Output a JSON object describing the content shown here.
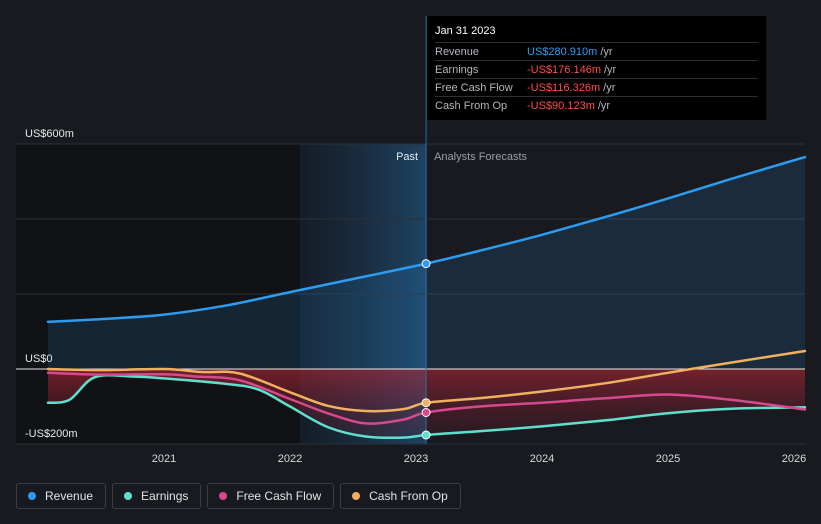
{
  "tooltip": {
    "date": "Jan 31 2023",
    "rows": [
      {
        "label": "Revenue",
        "value": "US$280.910m",
        "unit": "/yr"
      },
      {
        "label": "Earnings",
        "value": "-US$176.146m",
        "unit": "/yr"
      },
      {
        "label": "Free Cash Flow",
        "value": "-US$116.326m",
        "unit": "/yr"
      },
      {
        "label": "Cash From Op",
        "value": "-US$90.123m",
        "unit": "/yr"
      }
    ]
  },
  "legend": [
    {
      "label": "Revenue",
      "color": "#2d9cf0"
    },
    {
      "label": "Earnings",
      "color": "#5ee0cd"
    },
    {
      "label": "Free Cash Flow",
      "color": "#d6498f"
    },
    {
      "label": "Cash From Op",
      "color": "#f0b060"
    }
  ],
  "chart_data": {
    "type": "line",
    "y_axis_labels": [
      {
        "label": "US$600m",
        "value": 600
      },
      {
        "label": "US$0",
        "value": 0
      },
      {
        "label": "-US$200m",
        "value": -200
      }
    ],
    "ylim": [
      -200,
      600
    ],
    "xlim": [
      2020.0,
      2026.0
    ],
    "x_ticks": [
      {
        "label": "2021",
        "value": 2021.0
      },
      {
        "label": "2022",
        "value": 2022.0
      },
      {
        "label": "2023",
        "value": 2023.0
      },
      {
        "label": "2024",
        "value": 2024.0
      },
      {
        "label": "2025",
        "value": 2025.0
      },
      {
        "label": "2026",
        "value": 2026.0
      }
    ],
    "past_label": "Past",
    "forecast_label": "Analysts Forecasts",
    "divider_x": 2023.08,
    "highlight_start_x": 2022.08,
    "series": [
      {
        "name": "Revenue",
        "color": "#2d9cf0",
        "points": [
          [
            2020.0,
            126
          ],
          [
            2020.5,
            133
          ],
          [
            2021.0,
            145
          ],
          [
            2021.5,
            170
          ],
          [
            2022.0,
            205
          ],
          [
            2022.5,
            240
          ],
          [
            2023.08,
            281
          ],
          [
            2023.5,
            315
          ],
          [
            2024.0,
            358
          ],
          [
            2024.5,
            405
          ],
          [
            2025.0,
            455
          ],
          [
            2025.5,
            507
          ],
          [
            2026.1,
            565
          ]
        ]
      },
      {
        "name": "Earnings",
        "color": "#5ee0cd",
        "points": [
          [
            2020.0,
            -90
          ],
          [
            2020.25,
            -82
          ],
          [
            2020.45,
            -22
          ],
          [
            2020.75,
            -20
          ],
          [
            2021.0,
            -25
          ],
          [
            2021.5,
            -40
          ],
          [
            2021.75,
            -55
          ],
          [
            2022.0,
            -100
          ],
          [
            2022.3,
            -155
          ],
          [
            2022.6,
            -180
          ],
          [
            2022.9,
            -183
          ],
          [
            2023.08,
            -176
          ],
          [
            2023.5,
            -166
          ],
          [
            2024.0,
            -153
          ],
          [
            2024.5,
            -137
          ],
          [
            2025.0,
            -118
          ],
          [
            2025.5,
            -106
          ],
          [
            2026.1,
            -102
          ]
        ]
      },
      {
        "name": "Free Cash Flow",
        "color": "#d6498f",
        "points": [
          [
            2020.0,
            -10
          ],
          [
            2020.5,
            -15
          ],
          [
            2021.0,
            -14
          ],
          [
            2021.25,
            -20
          ],
          [
            2021.6,
            -30
          ],
          [
            2022.0,
            -80
          ],
          [
            2022.3,
            -118
          ],
          [
            2022.6,
            -145
          ],
          [
            2022.9,
            -135
          ],
          [
            2023.08,
            -116
          ],
          [
            2023.5,
            -100
          ],
          [
            2024.0,
            -90
          ],
          [
            2024.5,
            -78
          ],
          [
            2025.0,
            -68
          ],
          [
            2025.5,
            -82
          ],
          [
            2026.1,
            -108
          ]
        ]
      },
      {
        "name": "Cash From Op",
        "color": "#f0b060",
        "points": [
          [
            2020.0,
            0
          ],
          [
            2020.5,
            -3
          ],
          [
            2021.0,
            0
          ],
          [
            2021.3,
            -8
          ],
          [
            2021.6,
            -12
          ],
          [
            2022.0,
            -62
          ],
          [
            2022.3,
            -98
          ],
          [
            2022.6,
            -112
          ],
          [
            2022.9,
            -107
          ],
          [
            2023.08,
            -90
          ],
          [
            2023.5,
            -78
          ],
          [
            2024.0,
            -60
          ],
          [
            2024.5,
            -38
          ],
          [
            2025.0,
            -10
          ],
          [
            2025.5,
            17
          ],
          [
            2026.1,
            48
          ]
        ]
      }
    ]
  }
}
